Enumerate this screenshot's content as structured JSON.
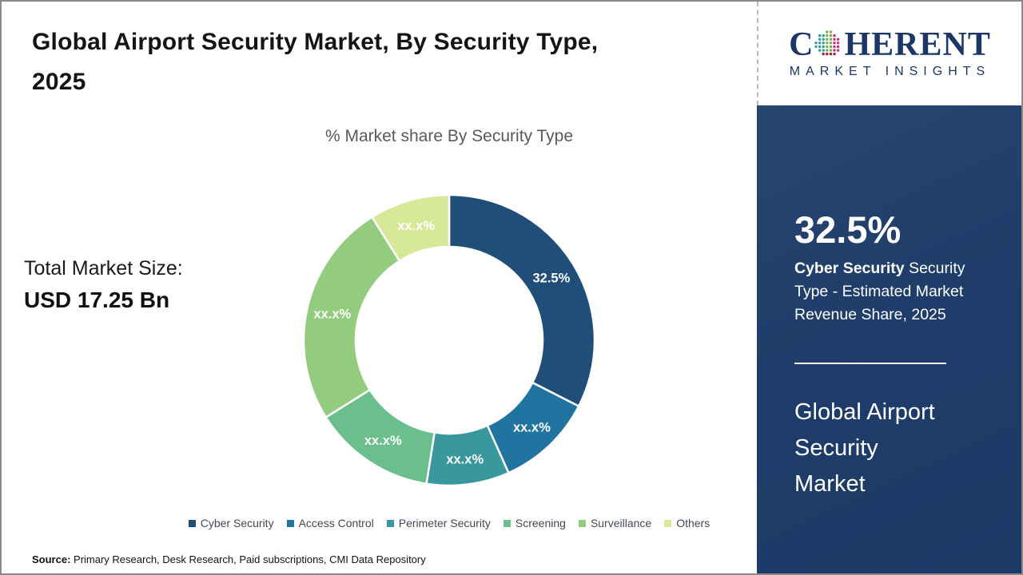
{
  "header": {
    "title_lines": [
      "Global Airport Security Market, By Security Type,",
      "2025"
    ]
  },
  "market_size": {
    "label": "Total Market Size:",
    "value": "USD 17.25 Bn"
  },
  "chart_data": {
    "type": "pie",
    "subtype": "donut",
    "title": "% Market share By Security Type",
    "legend_position": "bottom",
    "note": "Only the Cyber Security slice value is shown (32.5%); all other slice labels are masked as xx.x%. Masked values estimated from arc angles.",
    "segments": [
      {
        "id": "cyber-security",
        "name": "Cyber Security",
        "display_label": "32.5%",
        "value": 32.5,
        "color": "#1f4e79"
      },
      {
        "id": "access-control",
        "name": "Access Control",
        "display_label": "xx.x%",
        "value": 10.8,
        "color": "#2173a0"
      },
      {
        "id": "perimeter-security",
        "name": "Perimeter Security",
        "display_label": "xx.x%",
        "value": 9.2,
        "color": "#38989e"
      },
      {
        "id": "screening",
        "name": "Screening",
        "display_label": "xx.x%",
        "value": 13.6,
        "color": "#6abf8d"
      },
      {
        "id": "surveillance",
        "name": "Surveillance",
        "display_label": "xx.x%",
        "value": 25.0,
        "color": "#93cc7e"
      },
      {
        "id": "others",
        "name": "Others",
        "display_label": "xx.x%",
        "value": 8.9,
        "color": "#d7e897"
      }
    ]
  },
  "source": {
    "label": "Source:",
    "text": "Primary Research, Desk Research, Paid subscriptions, CMI Data Repository"
  },
  "branding": {
    "logo_text_c": "C",
    "logo_text_rest": "HERENT",
    "logo_subtext": "MARKET INSIGHTS",
    "logo_color": "#1c3766",
    "globe_colors": {
      "teal": "#2e9d9c",
      "green": "#76b043",
      "magenta": "#c2337f",
      "crimson": "#9e1f3f"
    }
  },
  "panel": {
    "background": "#1e3c69",
    "stat_value": "32.5%",
    "stat_label_bold": "Cyber Security",
    "stat_label_rest": "Security Type - Estimated Market Revenue Share, 2025",
    "market_name_lines": [
      "Global Airport",
      "Security",
      "Market"
    ]
  }
}
